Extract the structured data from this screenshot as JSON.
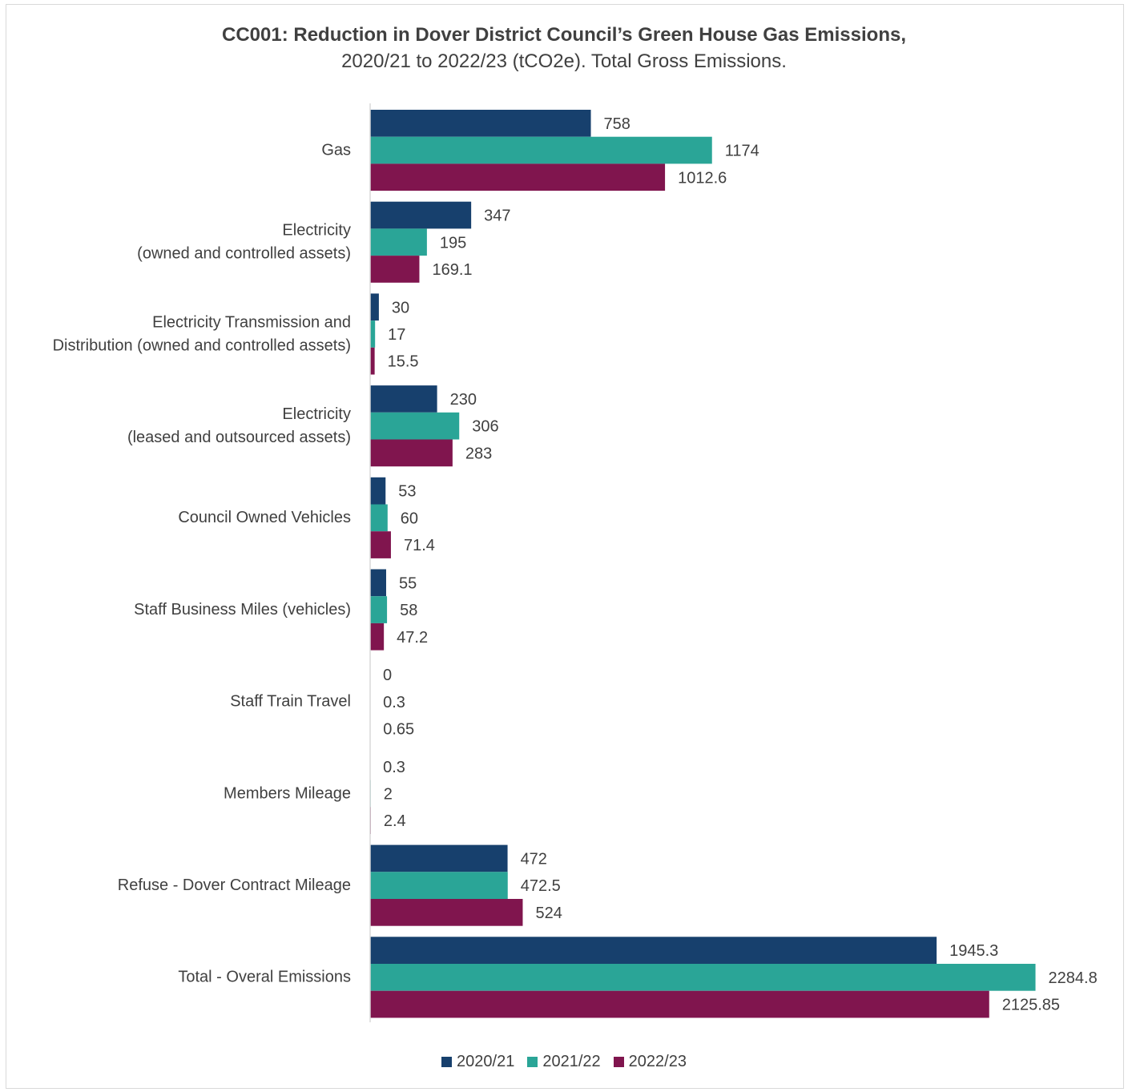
{
  "chart_data": {
    "type": "bar",
    "orientation": "horizontal",
    "title": "CC001: Reduction in Dover District Council’s Green House Gas Emissions,",
    "subtitle": "2020/21 to 2022/23 (tCO2e). Total Gross Emissions.",
    "xlim": [
      0,
      2300
    ],
    "grid": false,
    "legend_position": "bottom",
    "categories": [
      [
        "Gas"
      ],
      [
        "Electricity",
        "(owned and controlled assets)"
      ],
      [
        "Electricity Transmission and",
        "Distribution (owned and controlled assets)"
      ],
      [
        "Electricity",
        "(leased and outsourced assets)"
      ],
      [
        "Council Owned Vehicles"
      ],
      [
        "Staff Business Miles (vehicles)"
      ],
      [
        "Staff Train Travel"
      ],
      [
        "Members Mileage"
      ],
      [
        "Refuse - Dover Contract Mileage"
      ],
      [
        "Total - Overal Emissions"
      ]
    ],
    "series": [
      {
        "name": "2020/21",
        "color": "#17406d",
        "values": [
          758,
          347,
          30,
          230,
          53,
          55,
          0,
          0.3,
          472,
          1945.3
        ],
        "labels": [
          "758",
          "347",
          "30",
          "230",
          "53",
          "55",
          "0",
          "0.3",
          "472",
          "1945.3"
        ]
      },
      {
        "name": "2021/22",
        "color": "#2aa597",
        "values": [
          1174,
          195,
          17,
          306,
          60,
          58,
          0.3,
          2,
          472.5,
          2284.8
        ],
        "labels": [
          "1174",
          "195",
          "17",
          "306",
          "60",
          "58",
          "0.3",
          "2",
          "472.5",
          "2284.8"
        ]
      },
      {
        "name": "2022/23",
        "color": "#80154e",
        "values": [
          1012.6,
          169.1,
          15.5,
          283,
          71.4,
          47.2,
          0.65,
          2.4,
          524,
          2125.85
        ],
        "labels": [
          "1012.6",
          "169.1",
          "15.5",
          "283",
          "71.4",
          "47.2",
          "0.65",
          "2.4",
          "524",
          "2125.85"
        ]
      }
    ]
  }
}
